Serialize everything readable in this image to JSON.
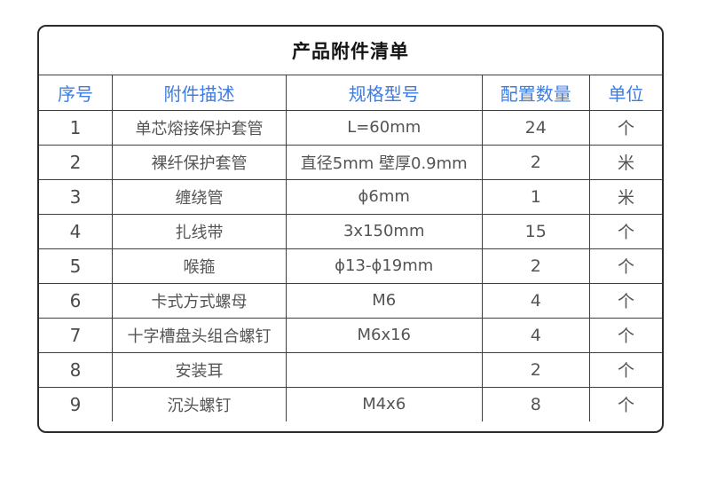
{
  "colors": {
    "accent_blue": "#3b7ce6",
    "outer_border": "#2b2b2b",
    "grid_line": "#3f3f3f",
    "title_text": "#141414",
    "body_text": "#545454",
    "background": "#ffffff"
  },
  "table": {
    "title": "产品附件清单",
    "columns": [
      "序号",
      "附件描述",
      "规格型号",
      "配置数量",
      "单位"
    ],
    "column_keys": [
      "index",
      "description",
      "spec",
      "quantity",
      "unit"
    ],
    "rows": [
      [
        "1",
        "单芯熔接保护套管",
        "L=60mm",
        "24",
        "个"
      ],
      [
        "2",
        "裸纤保护套管",
        "直径5mm 壁厚0.9mm",
        "2",
        "米"
      ],
      [
        "3",
        "缠绕管",
        "ϕ6mm",
        "1",
        "米"
      ],
      [
        "4",
        "扎线带",
        "3x150mm",
        "15",
        "个"
      ],
      [
        "5",
        "喉箍",
        "ϕ13-ϕ19mm",
        "2",
        "个"
      ],
      [
        "6",
        "卡式方式螺母",
        "M6",
        "4",
        "个"
      ],
      [
        "7",
        "十字槽盘头组合螺钉",
        "M6x16",
        "4",
        "个"
      ],
      [
        "8",
        "安装耳",
        "",
        "2",
        "个"
      ],
      [
        "9",
        "沉头螺钉",
        "M4x6",
        "8",
        "个"
      ]
    ]
  }
}
